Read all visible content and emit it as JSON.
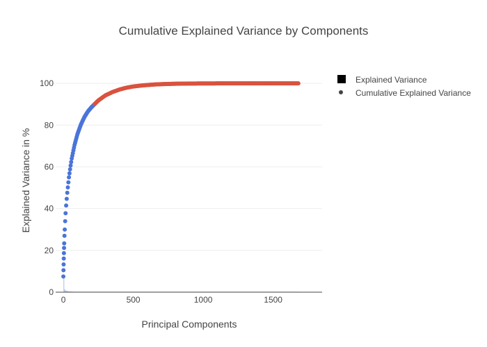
{
  "chart_data": {
    "type": "scatter",
    "title": "Cumulative Explained Variance by Components",
    "xlabel": "Principal Components",
    "ylabel": "Explained Variance in %",
    "xlim": [
      -55,
      1850
    ],
    "ylim": [
      0,
      110
    ],
    "x_ticks": [
      0,
      500,
      1000,
      1500
    ],
    "y_ticks": [
      0,
      20,
      40,
      60,
      80,
      100
    ],
    "grid": true,
    "legend_position": "top-right",
    "series": [
      {
        "name": "Explained Variance",
        "kind": "bar",
        "color": "#4a74d9",
        "x": [
          0,
          1,
          2,
          3,
          4,
          5,
          6,
          8,
          10,
          15,
          20,
          30,
          40,
          60,
          80,
          100,
          150,
          200,
          300,
          400,
          500,
          700,
          1000,
          1300,
          1680
        ],
        "y": [
          7.5,
          3.0,
          2.7,
          2.3,
          2.0,
          1.8,
          1.4,
          1.2,
          1.0,
          0.8,
          0.6,
          0.45,
          0.35,
          0.25,
          0.18,
          0.14,
          0.1,
          0.07,
          0.05,
          0.03,
          0.02,
          0.01,
          0.005,
          0.002,
          0.0
        ]
      },
      {
        "name": "Cumulative Explained Variance",
        "kind": "markers",
        "color_below_90": "#4a74d9",
        "color_above_90": "#d9533f",
        "x": [
          0,
          1,
          2,
          3,
          4,
          5,
          6,
          8,
          10,
          13,
          16,
          20,
          25,
          30,
          40,
          50,
          60,
          80,
          100,
          125,
          150,
          175,
          200,
          250,
          300,
          350,
          400,
          450,
          500,
          550,
          600,
          650,
          700,
          750,
          800,
          850,
          900,
          1000,
          1100,
          1200,
          1300,
          1400,
          1500,
          1600,
          1680
        ],
        "y": [
          7.5,
          10.5,
          13.3,
          16.1,
          18.7,
          21.2,
          23.4,
          27.0,
          30.0,
          34.0,
          37.8,
          41.5,
          45.5,
          49.0,
          55.0,
          59.8,
          64.0,
          70.5,
          75.5,
          80.2,
          83.8,
          86.5,
          88.5,
          91.8,
          94.2,
          95.8,
          97.0,
          97.9,
          98.5,
          98.9,
          99.2,
          99.45,
          99.6,
          99.72,
          99.8,
          99.86,
          99.9,
          99.95,
          99.97,
          99.98,
          99.99,
          99.995,
          100.0,
          100.0,
          100.0
        ]
      }
    ]
  }
}
